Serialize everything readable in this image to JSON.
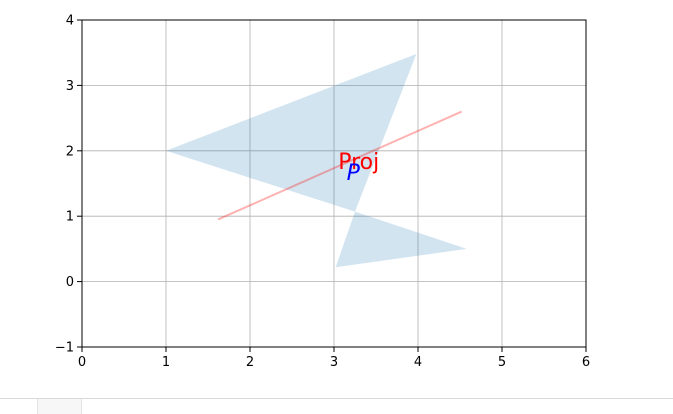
{
  "chart_data": {
    "type": "area",
    "title": "",
    "xlabel": "",
    "ylabel": "",
    "xlim": [
      0,
      6
    ],
    "ylim": [
      -1,
      4
    ],
    "xticks": [
      0,
      1,
      2,
      3,
      4,
      5,
      6
    ],
    "yticks": [
      -1,
      0,
      1,
      2,
      3,
      4
    ],
    "xtick_labels": [
      "0",
      "1",
      "2",
      "3",
      "4",
      "5",
      "6"
    ],
    "ytick_labels": [
      "−1",
      "0",
      "1",
      "2",
      "3",
      "4"
    ],
    "grid": true,
    "polygons": [
      {
        "points": [
          [
            1.0,
            2.0
          ],
          [
            3.98,
            3.48
          ],
          [
            3.25,
            1.07
          ]
        ],
        "color": "#1f77b4",
        "alpha": 0.2
      },
      {
        "points": [
          [
            3.25,
            1.07
          ],
          [
            4.58,
            0.5
          ],
          [
            3.02,
            0.22
          ]
        ],
        "color": "#1f77b4",
        "alpha": 0.2
      }
    ],
    "lines": [
      {
        "x": [
          1.62,
          4.52
        ],
        "y": [
          0.95,
          2.6
        ],
        "color": "#ff0000",
        "alpha": 0.3
      }
    ],
    "annotations": [
      {
        "text": "Proj",
        "x": 3.05,
        "y": 1.72,
        "color": "#ff0000",
        "style": "normal"
      },
      {
        "text": "P",
        "x": 3.15,
        "y": 1.55,
        "color": "#0000ff",
        "style": "italic"
      }
    ]
  }
}
